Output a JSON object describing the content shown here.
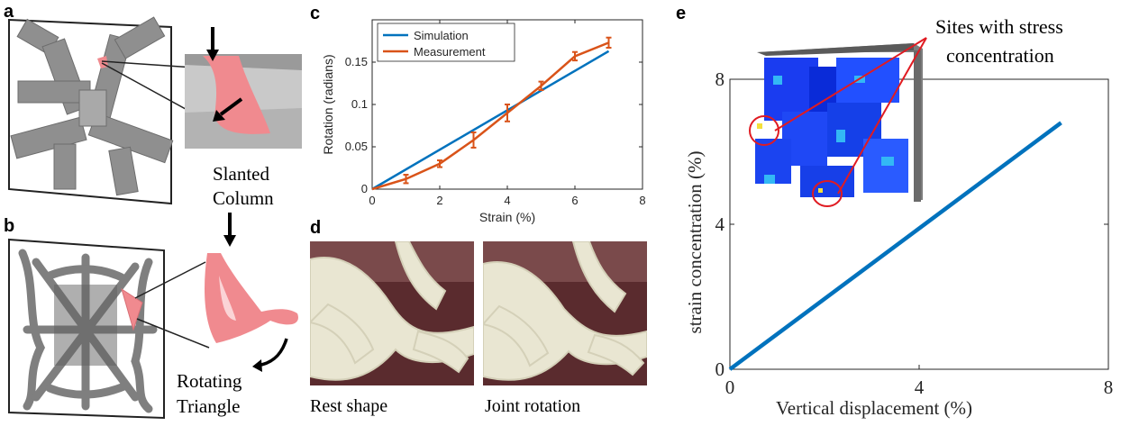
{
  "panels": {
    "a": {
      "letter": "a",
      "label_line1": "Slanted",
      "label_line2": "Column"
    },
    "b": {
      "letter": "b",
      "label_line1": "Rotating",
      "label_line2": "Triangle"
    },
    "c": {
      "letter": "c"
    },
    "d": {
      "letter": "d",
      "left_caption": "Rest shape",
      "right_caption": "Joint rotation"
    },
    "e": {
      "letter": "e",
      "callout_line1": "Sites with stress",
      "callout_line2": "concentration"
    }
  },
  "colors": {
    "simulation": "#0072BD",
    "measurement": "#D95319",
    "strain_line": "#0072BD",
    "highlight": "#F08A8F",
    "structure_gray": "#8C8C8C",
    "callout_red": "#E01B22"
  },
  "chart_data": [
    {
      "type": "line",
      "panel": "c",
      "xlabel": "Strain (%)",
      "ylabel": "Rotation (radians)",
      "xlim": [
        0,
        8
      ],
      "ylim": [
        0,
        0.2
      ],
      "xticks": [
        "0",
        "2",
        "4",
        "6",
        "8"
      ],
      "yticks": [
        "0",
        "0.05",
        "0.1",
        "0.15"
      ],
      "legend_position": "top-left",
      "series": [
        {
          "name": "Simulation",
          "x": [
            0,
            7
          ],
          "y": [
            0,
            0.163
          ]
        },
        {
          "name": "Measurement",
          "x": [
            0,
            1,
            2,
            3,
            4,
            5,
            6,
            7
          ],
          "y": [
            0,
            0.012,
            0.03,
            0.058,
            0.09,
            0.122,
            0.157,
            0.173
          ],
          "error": [
            0,
            0.005,
            0.004,
            0.009,
            0.01,
            0.005,
            0.005,
            0.006
          ]
        }
      ]
    },
    {
      "type": "line",
      "panel": "e",
      "xlabel": "Vertical displacement  (%)",
      "ylabel": "strain concentration  (%)",
      "xlim": [
        0,
        8
      ],
      "ylim": [
        0,
        8
      ],
      "xticks": [
        "0",
        "4",
        "8"
      ],
      "yticks": [
        "0",
        "4",
        "8"
      ],
      "series": [
        {
          "x": [
            0,
            7
          ],
          "y": [
            0,
            6.8
          ]
        }
      ]
    }
  ]
}
